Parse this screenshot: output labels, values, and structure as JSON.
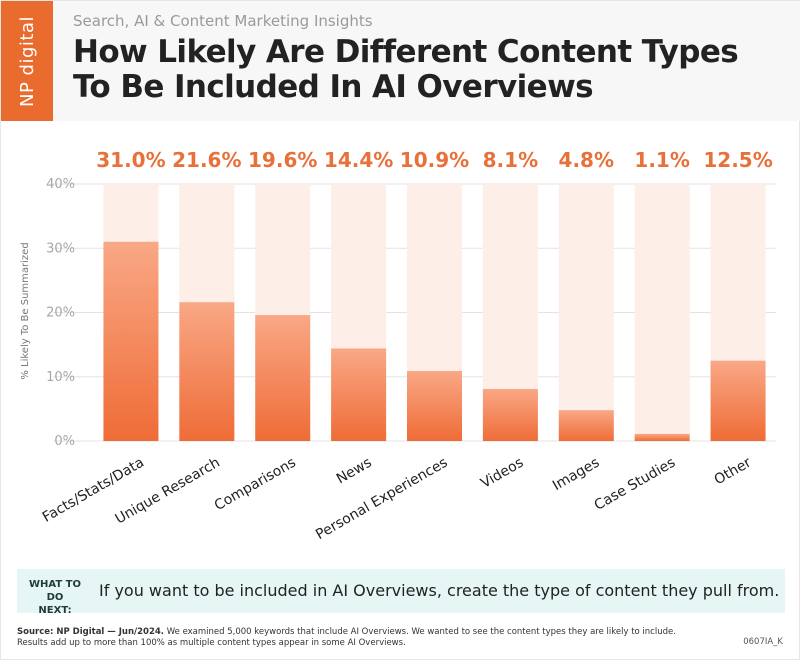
{
  "header": {
    "logo_text": "NP digital",
    "subtitle": "Search, AI & Content Marketing Insights",
    "title": "How Likely Are Different Content Types To Be Included In AI Overviews"
  },
  "colors": {
    "accent": "#e96b2e",
    "bar_top": "#f9a886",
    "bar_bottom": "#ef6c37",
    "bar_background": "#fdeee7",
    "value_label": "#e8703a",
    "callout_bg": "#e5f6f4"
  },
  "chart_data": {
    "type": "bar",
    "categories": [
      "Facts/Stats/Data",
      "Unique Research",
      "Comparisons",
      "News",
      "Personal Experiences",
      "Videos",
      "Images",
      "Case Studies",
      "Other"
    ],
    "values": [
      31.0,
      21.6,
      19.6,
      14.4,
      10.9,
      8.1,
      4.8,
      1.1,
      12.5
    ],
    "value_labels": [
      "31.0%",
      "21.6%",
      "19.6%",
      "14.4%",
      "10.9%",
      "8.1%",
      "4.8%",
      "1.1%",
      "12.5%"
    ],
    "ylabel": "% Likely To Be Summarized",
    "xlabel": "",
    "ylim": [
      0,
      40
    ],
    "yticks": [
      0,
      10,
      20,
      30,
      40
    ],
    "ytick_labels": [
      "0%",
      "10%",
      "20%",
      "30%",
      "40%"
    ],
    "grid": true,
    "legend": "none"
  },
  "callout": {
    "label": "WHAT TO DO NEXT:",
    "text": "If you want to be included in AI Overviews, create the type of content they pull from."
  },
  "footer": {
    "source_label": "Source: NP Digital — Jun/2024.",
    "source_text": " We examined 5,000 keywords that include AI Overviews. We wanted to see the content types they are likely to include. Results add up to more than 100% as multiple content types appear in some AI Overviews.",
    "code": "0607IA_K"
  }
}
